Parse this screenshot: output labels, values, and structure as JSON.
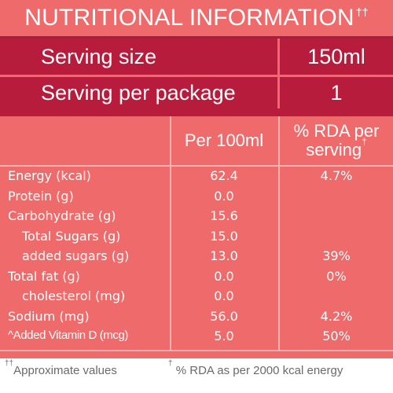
{
  "title": {
    "text": "NUTRITIONAL INFORMATION",
    "mark": "††"
  },
  "serving": {
    "size_label": "Serving size",
    "size_value": "150ml",
    "package_label": "Serving per package",
    "package_value": "1"
  },
  "columns": {
    "per100": "Per 100ml",
    "rda_line1": "% RDA per",
    "rda_line2": "serving",
    "rda_mark": "†"
  },
  "rows": [
    {
      "label": "Energy (kcal)",
      "per100": "62.4",
      "rda": "4.7%"
    },
    {
      "label": "Protein (g)",
      "per100": "0.0",
      "rda": ""
    },
    {
      "label": "Carbohydrate (g)",
      "per100": "15.6",
      "rda": ""
    },
    {
      "label": "Total Sugars (g)",
      "per100": "15.0",
      "rda": ""
    },
    {
      "label": "added sugars (g)",
      "per100": "13.0",
      "rda": "39%"
    },
    {
      "label": "Total fat (g)",
      "per100": "0.0",
      "rda": "0%"
    },
    {
      "label": "cholesterol (mg)",
      "per100": "0.0",
      "rda": ""
    },
    {
      "label": "Sodium (mg)",
      "per100": "56.0",
      "rda": "4.2%"
    },
    {
      "label": "^Added Vitamin D (mcg)",
      "per100": "5.0",
      "rda": "50%"
    }
  ],
  "footer": {
    "note1_mark": "††",
    "note1_text": "Approximate values",
    "note2_mark": "†",
    "note2_text": " % RDA as per 2000 kcal energy"
  },
  "colors": {
    "background": "#ef6a6a",
    "dark_band": "#b71c3d",
    "rule": "#f6b0b0",
    "footer_text": "#6a6a6a"
  }
}
